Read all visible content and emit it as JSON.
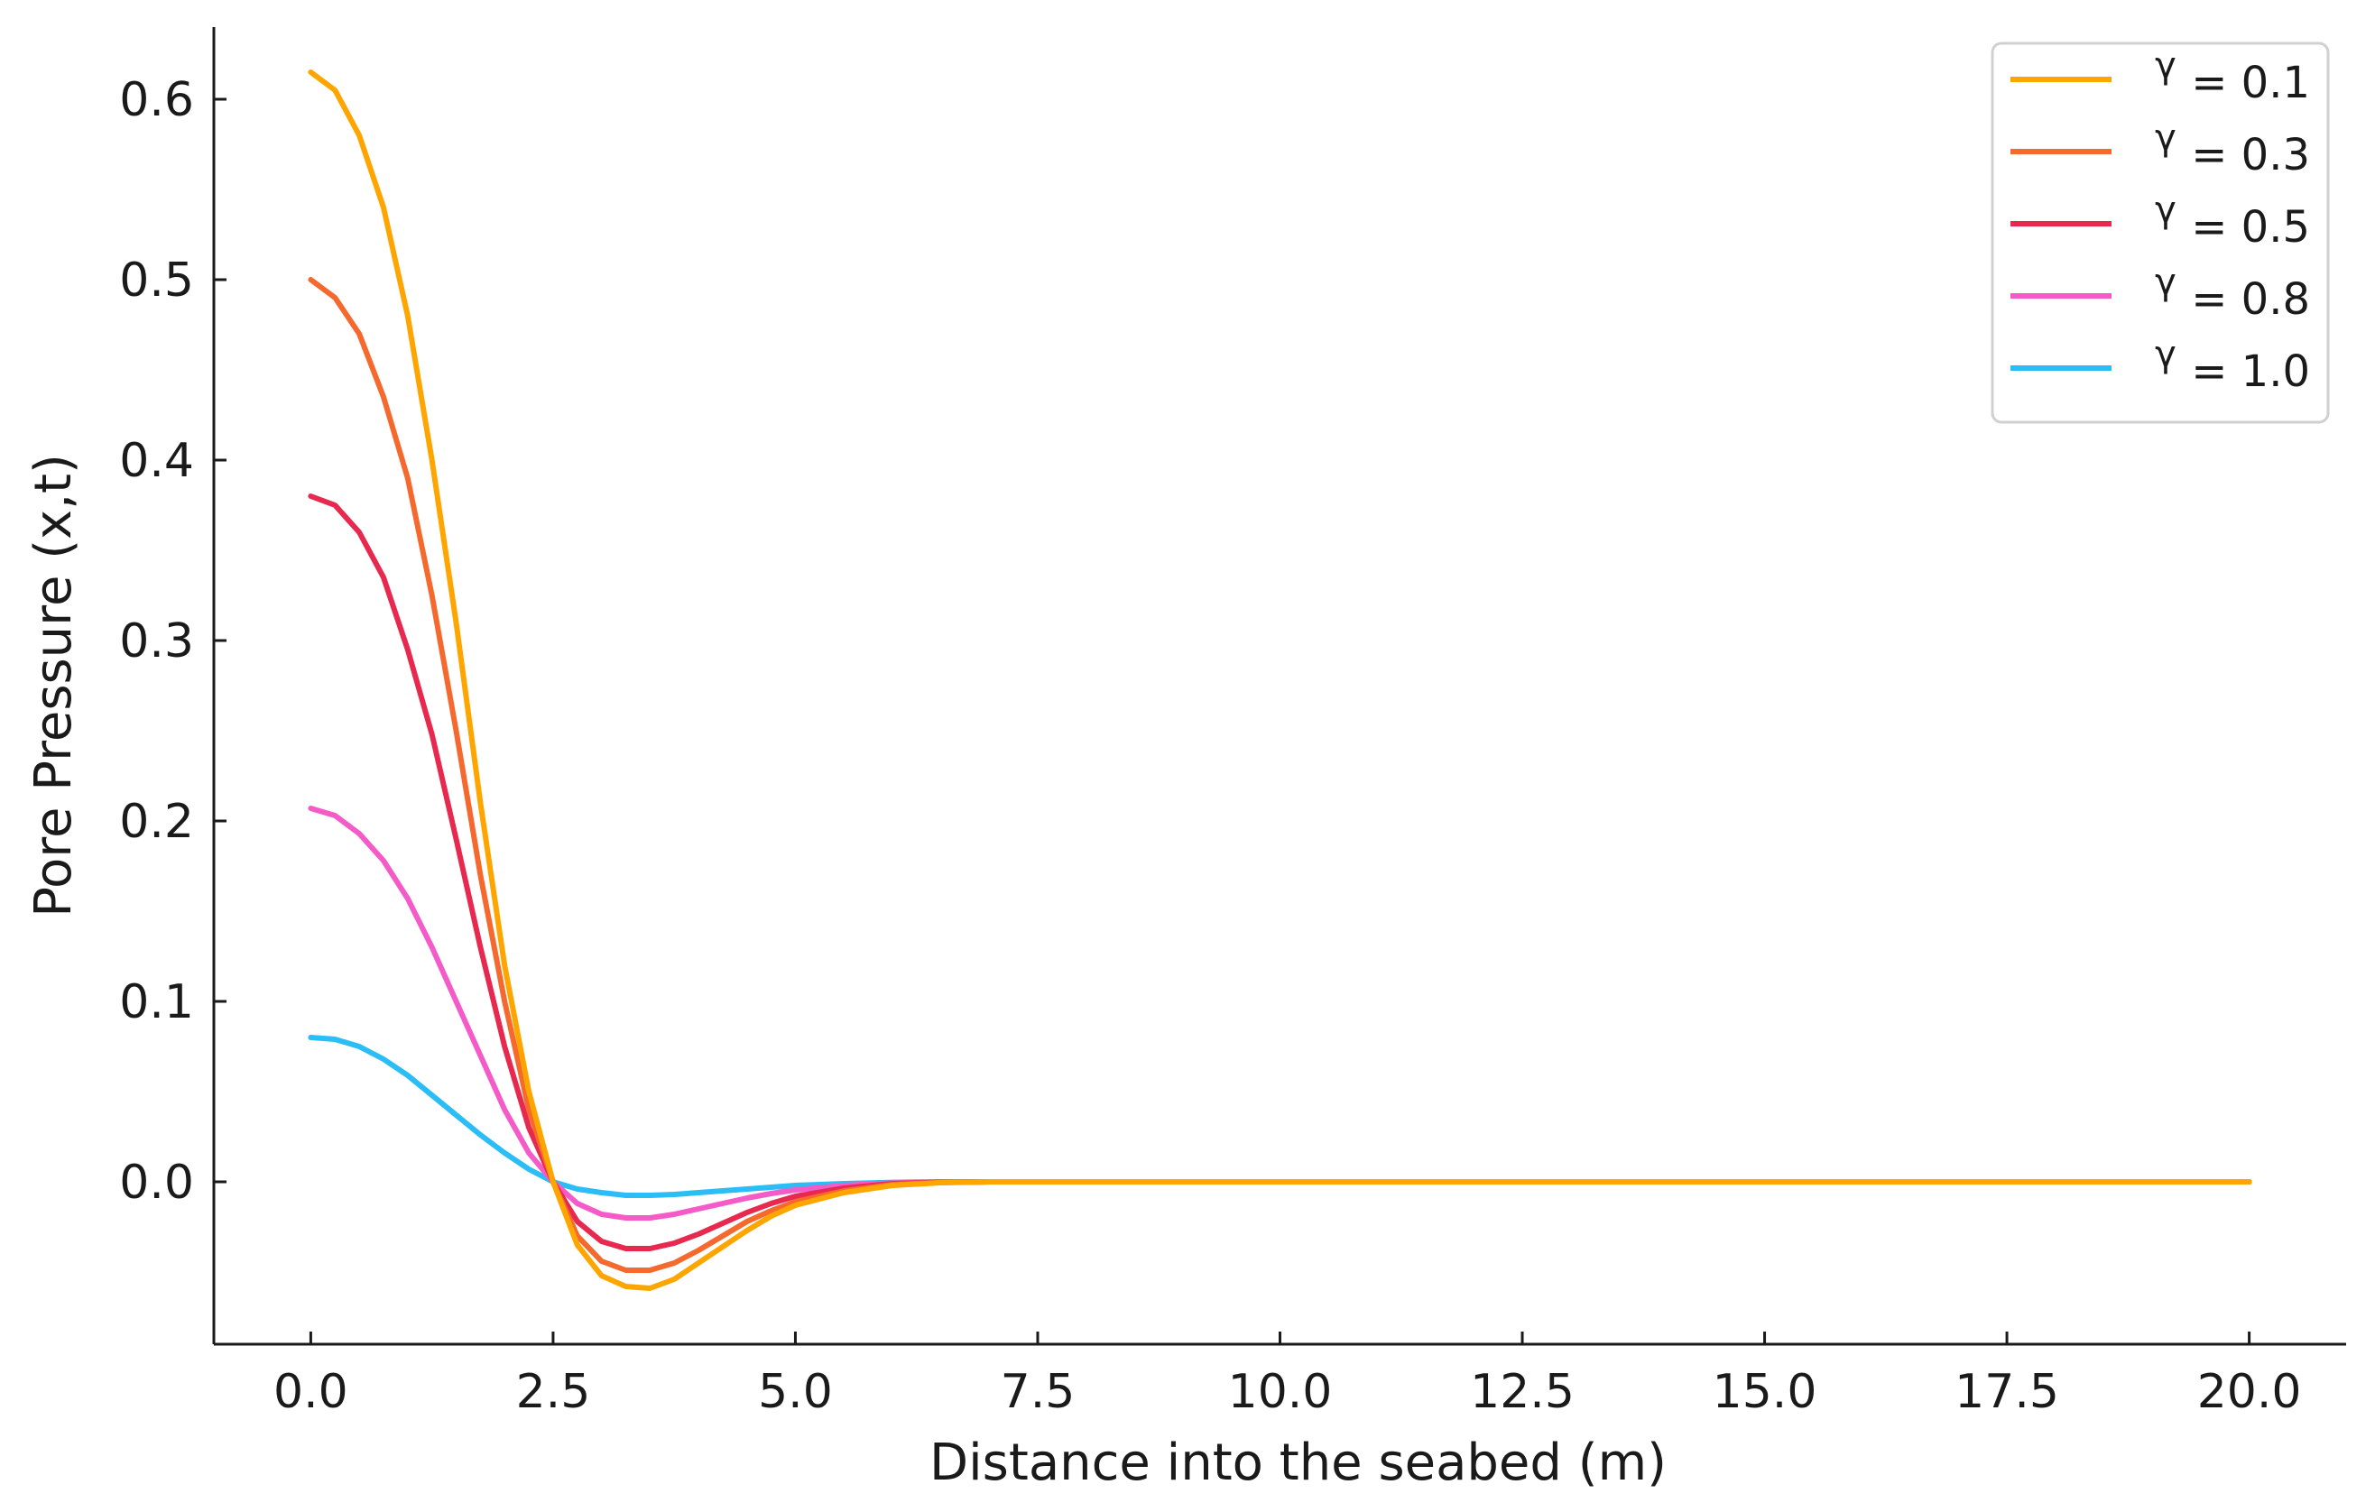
{
  "chart_data": {
    "type": "line",
    "title": "",
    "xlabel": "Distance into the seabed (m)",
    "ylabel": "Pore Pressure   (x,t)",
    "xlim": [
      -1.0,
      21.0
    ],
    "ylim": [
      -0.09,
      0.64
    ],
    "xticks": [
      0.0,
      2.5,
      5.0,
      7.5,
      10.0,
      12.5,
      15.0,
      17.5,
      20.0
    ],
    "xtick_labels": [
      "0.0",
      "2.5",
      "5.0",
      "7.5",
      "10.0",
      "12.5",
      "15.0",
      "17.5",
      "20.0"
    ],
    "yticks": [
      0.0,
      0.1,
      0.2,
      0.3,
      0.4,
      0.5,
      0.6
    ],
    "ytick_labels": [
      "0.0",
      "0.1",
      "0.2",
      "0.3",
      "0.4",
      "0.5",
      "0.6"
    ],
    "grid": false,
    "legend_position": "top-right",
    "x": [
      0.0,
      0.25,
      0.5,
      0.75,
      1.0,
      1.25,
      1.5,
      1.75,
      2.0,
      2.25,
      2.5,
      2.75,
      3.0,
      3.25,
      3.5,
      3.75,
      4.0,
      4.25,
      4.5,
      4.75,
      5.0,
      5.5,
      6.0,
      6.5,
      7.0,
      7.5,
      10.0,
      12.5,
      15.0,
      17.5,
      20.0
    ],
    "series": [
      {
        "name": "γ = 0.1",
        "symbol": "γ",
        "value_text": "= 0.1",
        "color": "#FFA500",
        "values": [
          0.615,
          0.605,
          0.58,
          0.54,
          0.48,
          0.4,
          0.31,
          0.21,
          0.12,
          0.05,
          0.0,
          -0.035,
          -0.052,
          -0.058,
          -0.059,
          -0.054,
          -0.045,
          -0.036,
          -0.027,
          -0.019,
          -0.013,
          -0.006,
          -0.002,
          -0.0005,
          0.0,
          0.0,
          0.0,
          0.0,
          0.0,
          0.0,
          0.0
        ]
      },
      {
        "name": "γ = 0.3",
        "symbol": "γ",
        "value_text": "= 0.3",
        "color": "#F5692E",
        "values": [
          0.5,
          0.49,
          0.47,
          0.435,
          0.39,
          0.325,
          0.25,
          0.17,
          0.1,
          0.04,
          0.0,
          -0.03,
          -0.044,
          -0.049,
          -0.049,
          -0.045,
          -0.038,
          -0.03,
          -0.022,
          -0.016,
          -0.011,
          -0.005,
          -0.0015,
          -0.0004,
          0.0,
          0.0,
          0.0,
          0.0,
          0.0,
          0.0,
          0.0
        ]
      },
      {
        "name": "γ = 0.5",
        "symbol": "γ",
        "value_text": "= 0.5",
        "color": "#E8294F",
        "values": [
          0.38,
          0.375,
          0.36,
          0.335,
          0.295,
          0.248,
          0.19,
          0.13,
          0.075,
          0.03,
          0.0,
          -0.022,
          -0.033,
          -0.037,
          -0.037,
          -0.034,
          -0.029,
          -0.023,
          -0.017,
          -0.012,
          -0.008,
          -0.0035,
          -0.001,
          -0.0003,
          0.0,
          0.0,
          0.0,
          0.0,
          0.0,
          0.0,
          0.0
        ]
      },
      {
        "name": "γ = 0.8",
        "symbol": "γ",
        "value_text": "= 0.8",
        "color": "#F55BC8",
        "values": [
          0.207,
          0.203,
          0.193,
          0.178,
          0.157,
          0.13,
          0.1,
          0.07,
          0.04,
          0.016,
          0.0,
          -0.012,
          -0.018,
          -0.02,
          -0.02,
          -0.018,
          -0.015,
          -0.012,
          -0.009,
          -0.0065,
          -0.0045,
          -0.002,
          -0.0006,
          -0.0002,
          0.0,
          0.0,
          0.0,
          0.0,
          0.0,
          0.0,
          0.0
        ]
      },
      {
        "name": "γ = 1.0",
        "symbol": "γ",
        "value_text": "= 1.0",
        "color": "#2BBDF5",
        "values": [
          0.08,
          0.079,
          0.075,
          0.068,
          0.059,
          0.048,
          0.037,
          0.026,
          0.016,
          0.007,
          0.0,
          -0.004,
          -0.006,
          -0.0075,
          -0.0075,
          -0.007,
          -0.006,
          -0.005,
          -0.004,
          -0.003,
          -0.002,
          -0.001,
          -0.0003,
          0.0,
          0.0,
          0.0,
          0.0,
          0.0,
          0.0,
          0.0,
          0.0
        ]
      }
    ]
  }
}
